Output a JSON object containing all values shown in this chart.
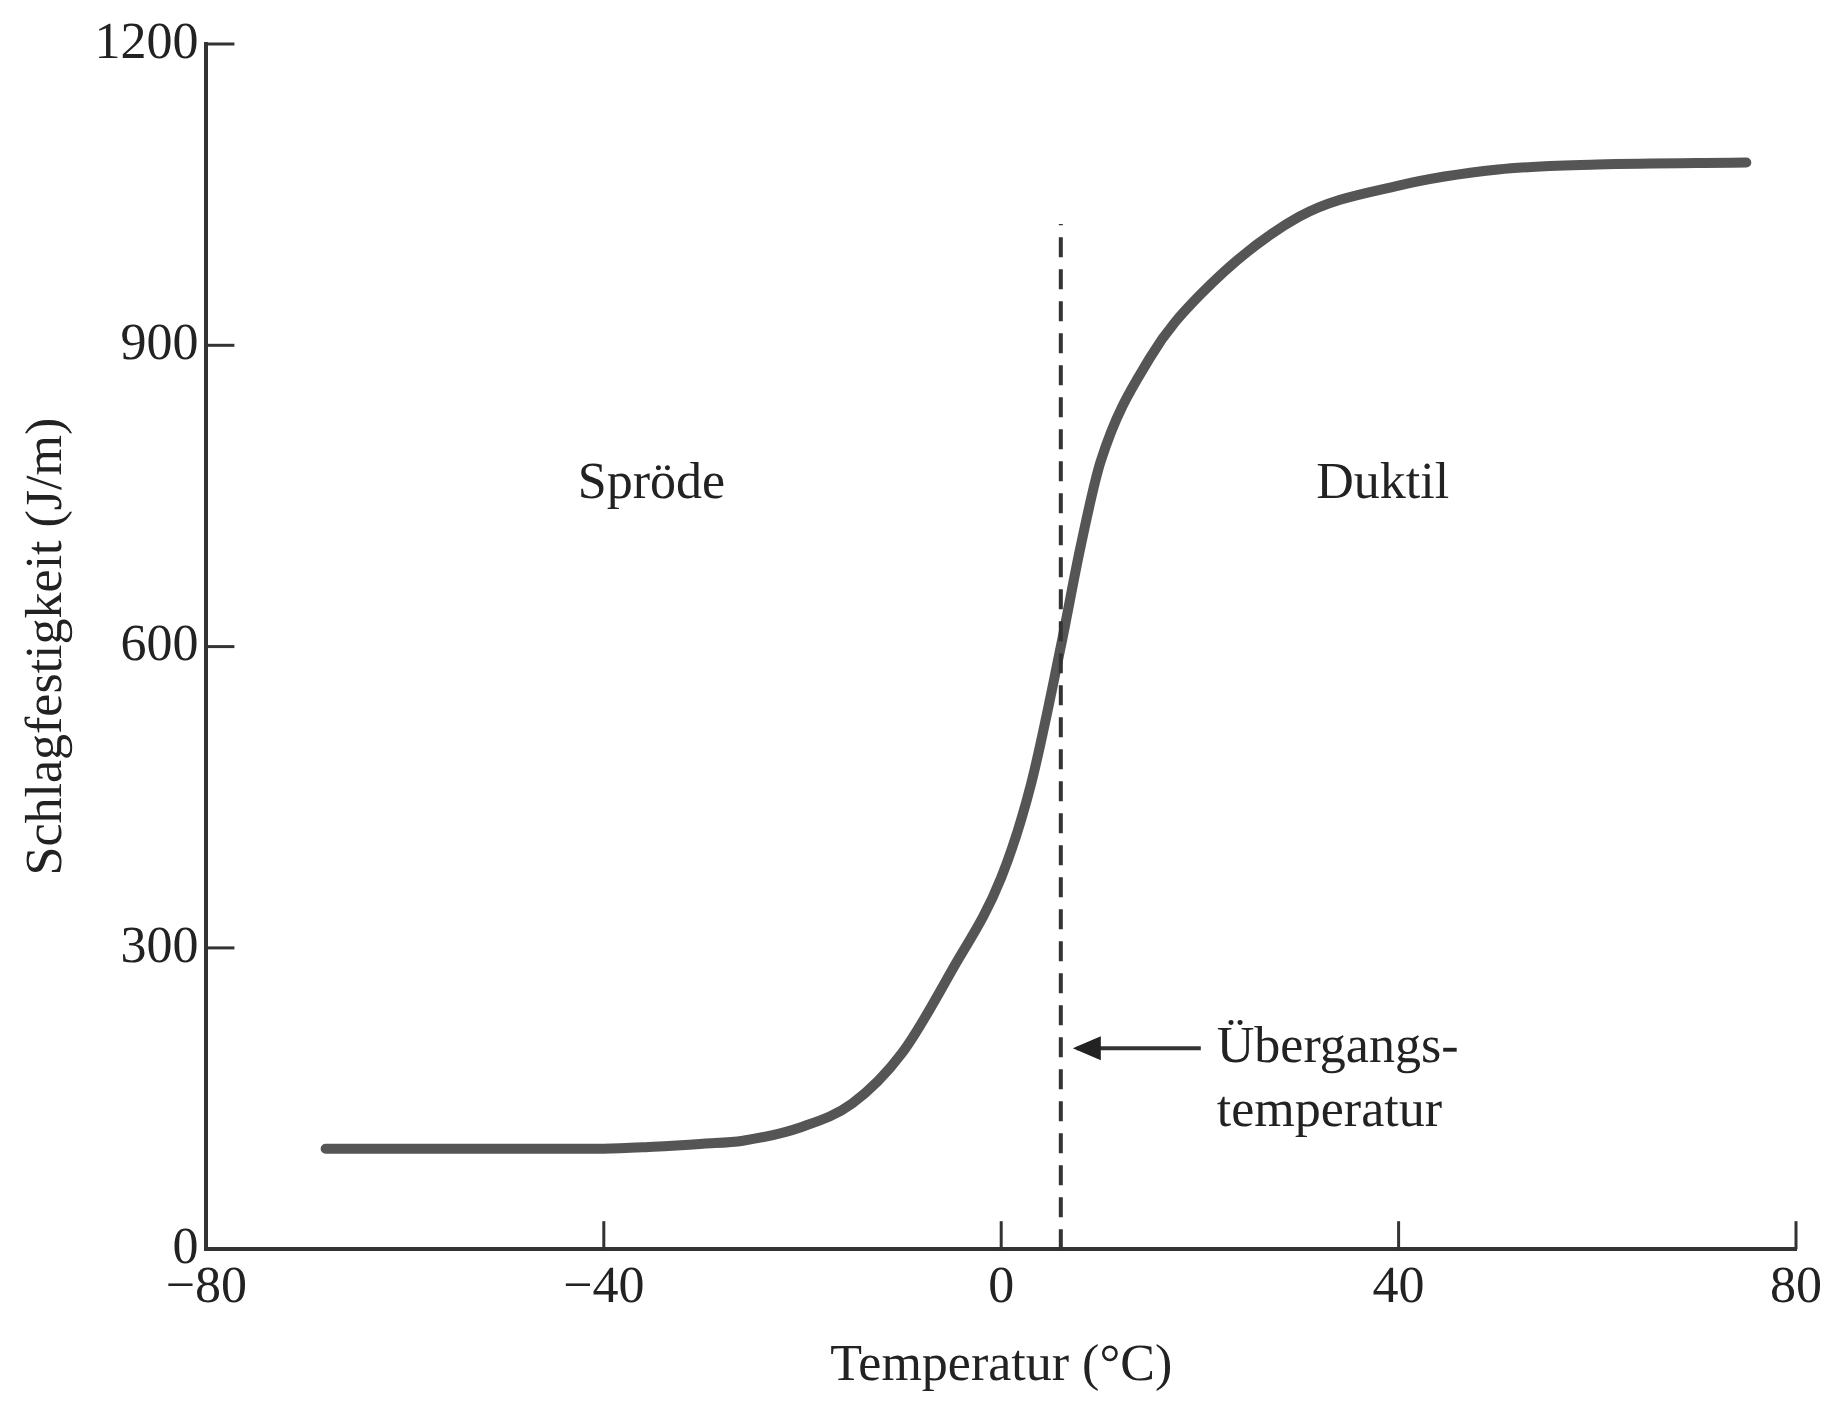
{
  "chart_data": {
    "type": "line",
    "xlabel": "Temperatur (°C)",
    "ylabel": "Schlagfestigkeit (J/m)",
    "series": [
      {
        "color": "#555555",
        "x": [
          -68,
          -50,
          -40,
          -35,
          -30,
          -26,
          -20,
          -15,
          -10,
          -5,
          0,
          3,
          6,
          8,
          10,
          15,
          20,
          30,
          40,
          50,
          60,
          75
        ],
        "values": [
          100,
          100,
          100,
          102,
          105,
          108,
          122,
          145,
          195,
          277,
          370,
          463,
          600,
          700,
          784,
          888,
          950,
          1028,
          1059,
          1075,
          1080,
          1082
        ]
      }
    ],
    "xlim": [
      -80,
      80
    ],
    "xticks": [
      -80,
      -40,
      0,
      40,
      80
    ],
    "ylim": [
      0,
      1200
    ],
    "yticks": [
      0,
      300,
      600,
      900,
      1200
    ],
    "grid": false,
    "legend": false,
    "marker": "none",
    "line_style": "solid",
    "ref_lines": [
      {
        "axis": "x",
        "value": 6,
        "label": "Übergangs-\ntemperatur",
        "line_style": "dashed",
        "color": "#333333"
      }
    ],
    "annotations": [
      "Spröde",
      "Duktil"
    ]
  }
}
